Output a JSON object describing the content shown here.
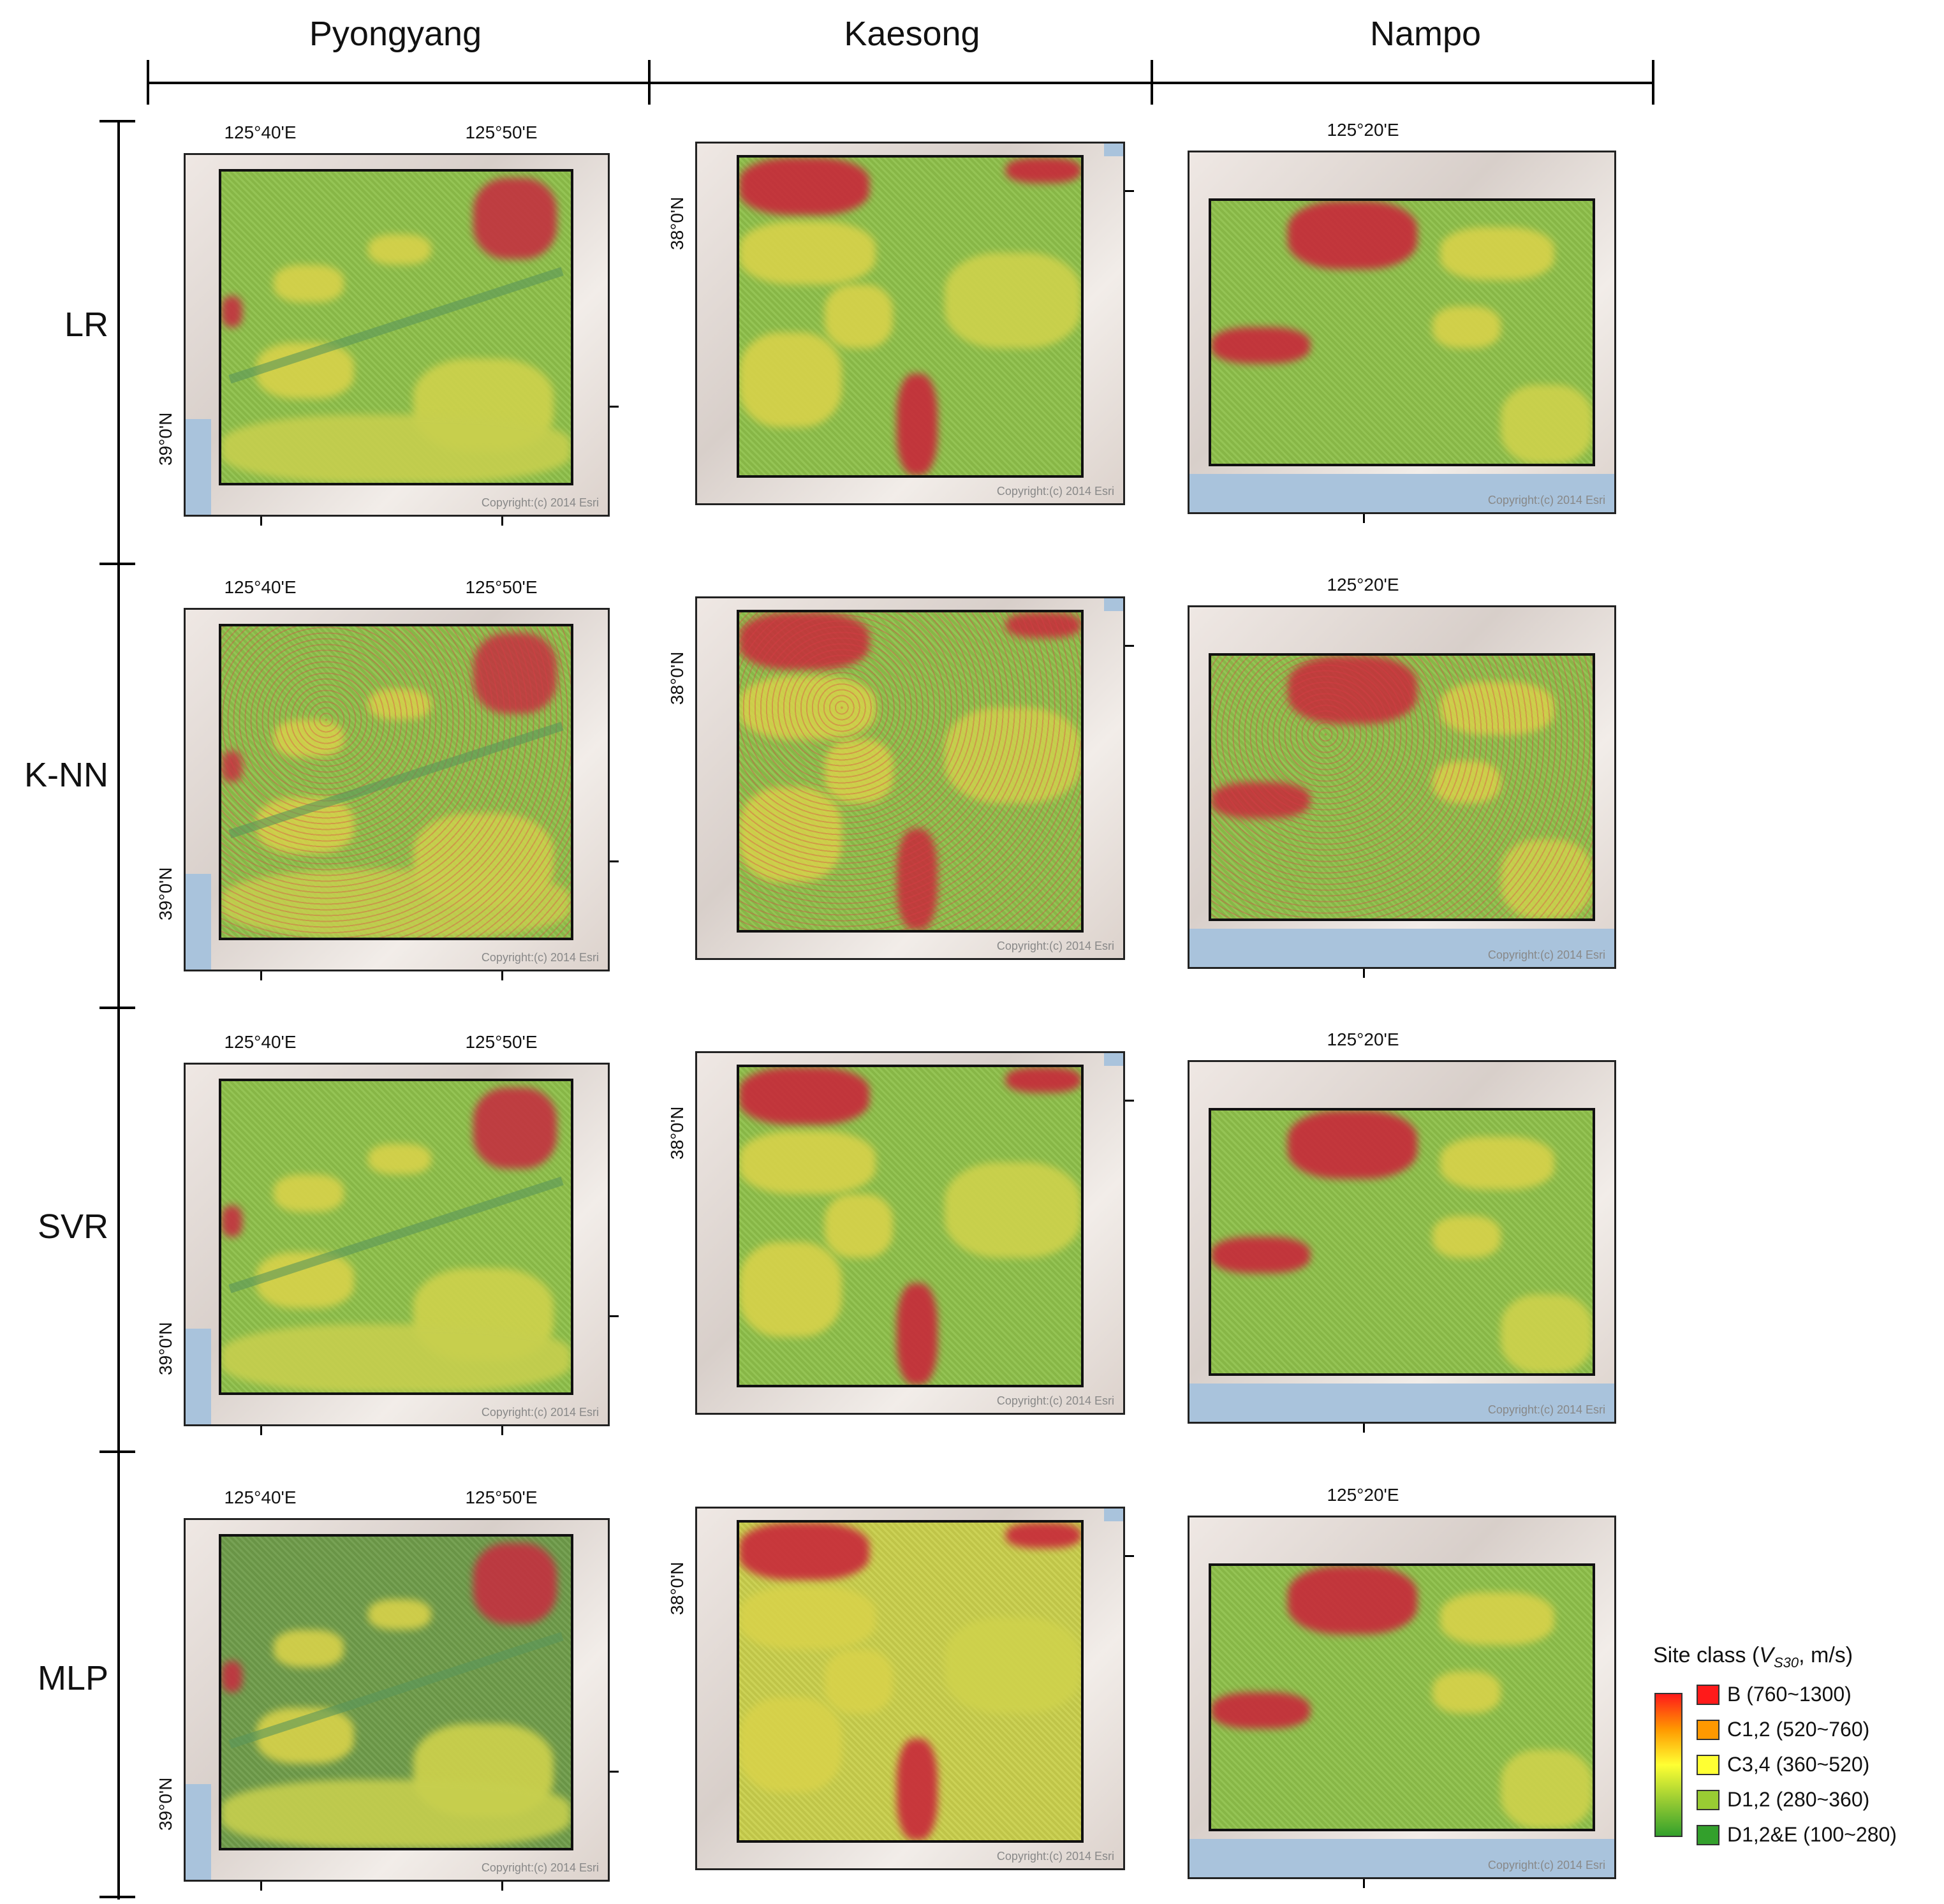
{
  "columns": [
    "Pyongyang",
    "Kaesong",
    "Nampo"
  ],
  "rows": [
    "LR",
    "K-NN",
    "SVR",
    "MLP"
  ],
  "axis_labels": {
    "pyongyang_lon_1": "125°40'E",
    "pyongyang_lon_2": "125°50'E",
    "pyongyang_lat": "39°0'N",
    "kaesong_lat": "38°0'N",
    "nampo_lon": "125°20'E"
  },
  "copyright": "Copyright:(c) 2014 Esri",
  "legend": {
    "title_prefix": "Site class (",
    "title_var": "V",
    "title_sub": "S30",
    "title_suffix": ", m/s)",
    "items": [
      {
        "label": "B (760~1300)",
        "color": "#ff1a1a"
      },
      {
        "label": "C1,2 (520~760)",
        "color": "#ff9900"
      },
      {
        "label": "C3,4 (360~520)",
        "color": "#ffff33"
      },
      {
        "label": "D1,2 (280~360)",
        "color": "#99cc33"
      },
      {
        "label": "D1,2&E (100~280)",
        "color": "#33a02c"
      }
    ]
  }
}
